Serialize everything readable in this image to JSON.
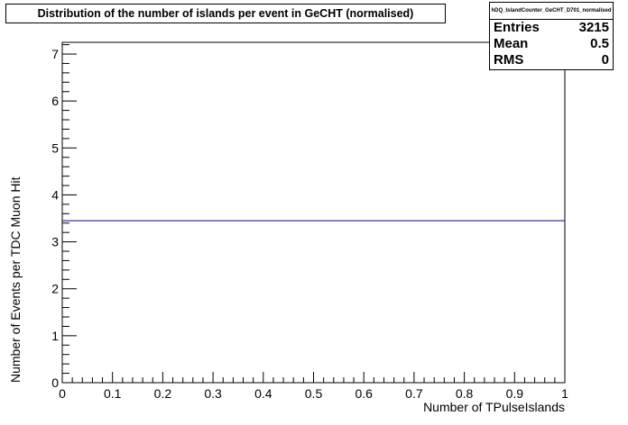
{
  "chart_data": {
    "type": "line",
    "title": "Distribution of the number of islands per event in GeCHT (normalised)",
    "xlabel": "Number of TPulseIslands",
    "ylabel": "Number of Events per TDC Muon Hit",
    "xlim": [
      0,
      1
    ],
    "ylim": [
      0,
      7.25
    ],
    "x_ticks": [
      "0",
      "0.1",
      "0.2",
      "0.3",
      "0.4",
      "0.5",
      "0.6",
      "0.7",
      "0.8",
      "0.9",
      "1"
    ],
    "x_tick_values": [
      0,
      0.1,
      0.2,
      0.3,
      0.4,
      0.5,
      0.6,
      0.7,
      0.8,
      0.9,
      1
    ],
    "y_ticks": [
      "0",
      "1",
      "2",
      "3",
      "4",
      "5",
      "6",
      "7"
    ],
    "y_tick_values": [
      0,
      1,
      2,
      3,
      4,
      5,
      6,
      7
    ],
    "series": [
      {
        "x": [
          0,
          1
        ],
        "y": [
          3.45,
          3.45
        ],
        "color": "#000080"
      }
    ],
    "grid": false
  },
  "stats": {
    "name": "hDQ_IslandCounter_GeCHT_D701_normalised",
    "rows": [
      {
        "label": "Entries",
        "value": "3215"
      },
      {
        "label": "Mean",
        "value": "0.5"
      },
      {
        "label": "RMS",
        "value": "0"
      }
    ]
  }
}
